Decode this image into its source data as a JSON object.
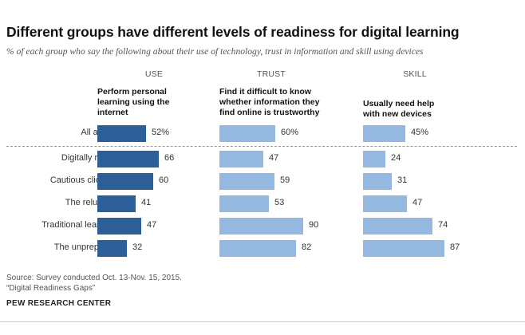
{
  "title": "Different groups have different levels of readiness for digital learning",
  "subtitle": "% of each group who say the following about their use of technology, trust in information and skill using devices",
  "sections": [
    {
      "header": "USE",
      "label": [
        "Perform personal",
        "learning using the",
        "internet"
      ]
    },
    {
      "header": "TRUST",
      "label": [
        "Find it difficult to know",
        "whether information they",
        "find online is trustworthy"
      ]
    },
    {
      "header": "SKILL",
      "label": [
        "Usually need help",
        "with new devices"
      ]
    }
  ],
  "source": [
    "Source: Survey conducted Oct. 13-Nov. 15, 2015.",
    "“Digital Readiness Gaps”"
  ],
  "brand": "PEW RESEARCH CENTER",
  "colors": {
    "dark_bar": "#2c5e98",
    "light_bar": "#94b8e0"
  },
  "chart_data": {
    "type": "bar",
    "orientation": "horizontal",
    "categories": [
      "All adults",
      "Digitally ready",
      "Cautious clickers",
      "The reluctant",
      "Traditional learners",
      "The unprepared"
    ],
    "series": [
      {
        "name": "USE",
        "values": [
          52,
          66,
          60,
          41,
          47,
          32
        ],
        "labels": [
          "52%",
          "66",
          "60",
          "41",
          "47",
          "32"
        ]
      },
      {
        "name": "TRUST",
        "values": [
          60,
          47,
          59,
          53,
          90,
          82
        ],
        "labels": [
          "60%",
          "47",
          "59",
          "53",
          "90",
          "82"
        ]
      },
      {
        "name": "SKILL",
        "values": [
          45,
          24,
          31,
          47,
          74,
          87
        ],
        "labels": [
          "45%",
          "24",
          "31",
          "47",
          "74",
          "87"
        ]
      }
    ],
    "xlim": [
      0,
      100
    ],
    "grid": false,
    "legend": "none"
  }
}
